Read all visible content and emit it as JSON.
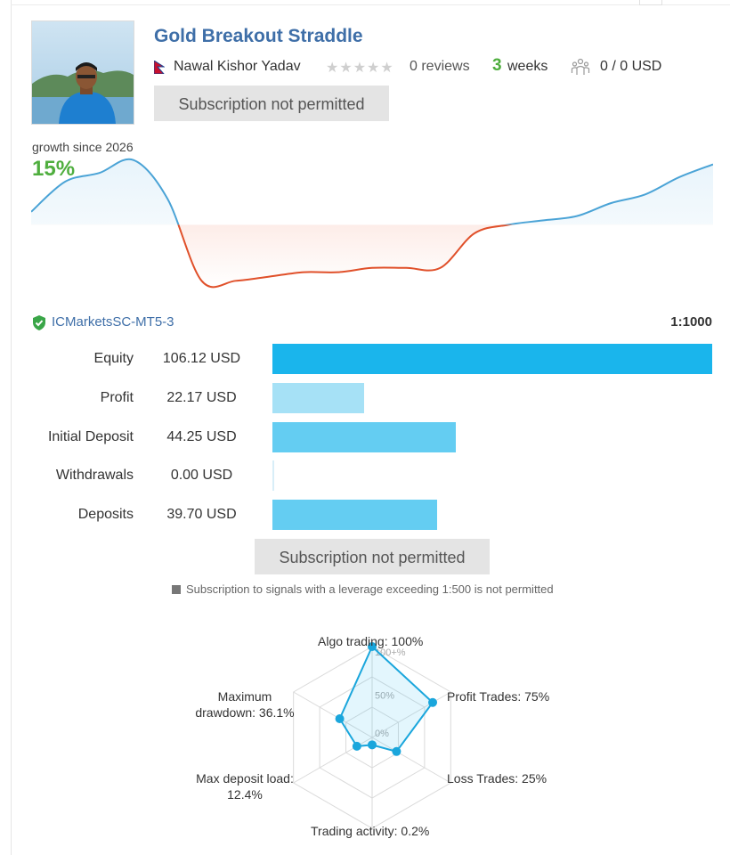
{
  "signal": {
    "title": "Gold Breakout Straddle",
    "author": "Nawal Kishor Yadav",
    "reviews": "0 reviews",
    "weeks_value": "3",
    "weeks_unit": "weeks",
    "subscribers": "0 / 0 USD",
    "subscribe_label": "Subscription not permitted"
  },
  "growth": {
    "label": "growth since 2026",
    "value": "15%"
  },
  "chart_data": {
    "type": "area",
    "description_note": "",
    "x": [
      0,
      5,
      10,
      15,
      20,
      25,
      30,
      35,
      40,
      45,
      50,
      55,
      60,
      65,
      70,
      75,
      80,
      85,
      90,
      95,
      100
    ],
    "values": [
      3,
      10,
      12,
      15,
      6,
      -13,
      -13,
      -12,
      -11,
      -11,
      -10,
      -10,
      -10,
      -2,
      0,
      1,
      2,
      5,
      7,
      11,
      14
    ],
    "colors": {
      "positive": "#4aa3d6",
      "negative": "#e0502a"
    }
  },
  "account": {
    "broker": "ICMarketsSC-MT5-3",
    "leverage": "1:1000"
  },
  "stats": [
    {
      "label": "Equity",
      "value": "106.12 USD",
      "amount": 106.12,
      "color": "#1ab5ec"
    },
    {
      "label": "Profit",
      "value": "22.17 USD",
      "amount": 22.17,
      "color": "#a6e1f6"
    },
    {
      "label": "Initial Deposit",
      "value": "44.25 USD",
      "amount": 44.25,
      "color": "#64cdf2"
    },
    {
      "label": "Withdrawals",
      "value": "0.00 USD",
      "amount": 0,
      "color": "#64cdf2"
    },
    {
      "label": "Deposits",
      "value": "39.70 USD",
      "amount": 39.7,
      "color": "#64cdf2"
    }
  ],
  "notice": "Subscription to signals with a leverage exceeding 1:500 is not permitted",
  "radar": {
    "ticks": [
      "100+%",
      "50%",
      "0%"
    ],
    "axes": [
      {
        "label": "Algo trading: 100%",
        "value": 100
      },
      {
        "label": "Profit Trades: 75%",
        "value": 75
      },
      {
        "label": "Loss Trades: 25%",
        "value": 25
      },
      {
        "label": "Trading activity: 0.2%",
        "value": 0.2
      },
      {
        "label_line1": "Max deposit load:",
        "label_line2": "12.4%",
        "value": 12.4
      },
      {
        "label_line1": "Maximum",
        "label_line2": "drawdown: 36.1%",
        "value": 36.1
      }
    ]
  }
}
